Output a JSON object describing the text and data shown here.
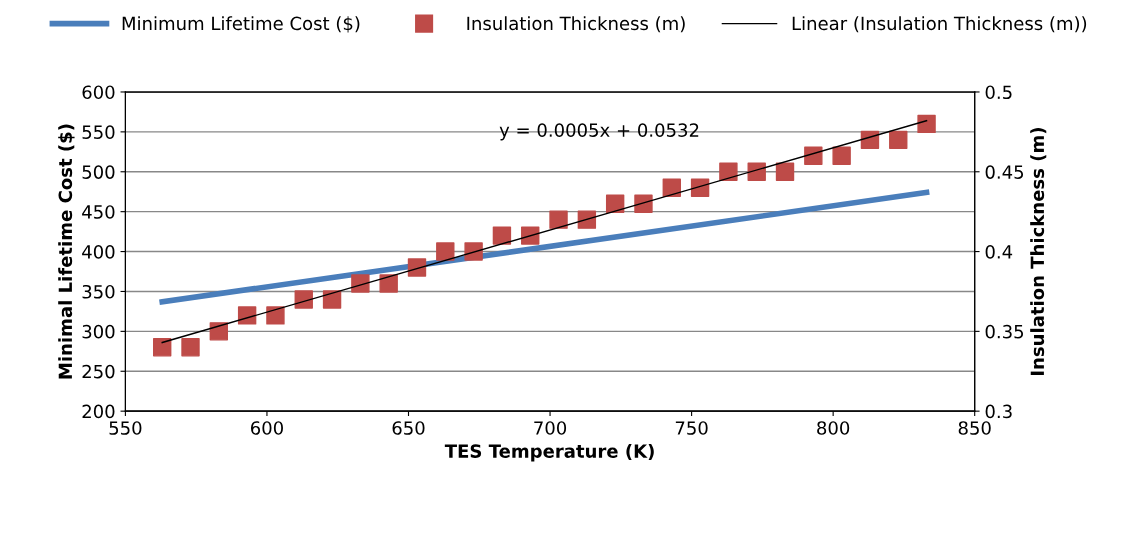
{
  "chart_data": {
    "type": "line",
    "xlabel": "TES Temperature (K)",
    "ylabel": "Minimal Lifetime Cost ($)",
    "y2label": "Insulation Thickness (m)",
    "xlim": [
      550,
      850
    ],
    "xticks": [
      550,
      600,
      650,
      700,
      750,
      800,
      850
    ],
    "ylim": [
      200,
      600
    ],
    "yticks": [
      200,
      250,
      300,
      350,
      400,
      450,
      500,
      550,
      600
    ],
    "y2lim": [
      0.3,
      0.5
    ],
    "y2ticks": [
      0.3,
      0.35,
      0.4,
      0.45,
      0.5
    ],
    "grid": "y",
    "legend": "top",
    "annotations": [
      "y = 0.0005x + 0.0532"
    ],
    "series": [
      {
        "name": "Minimum Lifetime Cost ($)",
        "color": "#4a7ebb",
        "marker": "none",
        "x": [
          563,
          833
        ],
        "values": [
          337,
          474
        ]
      },
      {
        "name": "Insulation Thickness (m)",
        "type": "scatter",
        "axis": "y2",
        "color": "#be4b48",
        "marker": "square",
        "x": [
          563,
          573,
          583,
          593,
          603,
          613,
          623,
          633,
          643,
          653,
          663,
          673,
          683,
          693,
          703,
          713,
          723,
          733,
          743,
          753,
          763,
          773,
          783,
          793,
          803,
          813,
          823,
          833
        ],
        "values": [
          0.34,
          0.34,
          0.35,
          0.36,
          0.36,
          0.37,
          0.37,
          0.38,
          0.38,
          0.39,
          0.4,
          0.4,
          0.41,
          0.41,
          0.42,
          0.42,
          0.43,
          0.43,
          0.44,
          0.44,
          0.45,
          0.45,
          0.45,
          0.46,
          0.46,
          0.47,
          0.47,
          0.48
        ]
      },
      {
        "name": "Linear (Insulation Thickness (m))",
        "type": "line",
        "axis": "y2",
        "color": "#000000",
        "marker": "none",
        "x": [
          563,
          833
        ],
        "values": [
          0.343,
          0.482
        ]
      }
    ]
  }
}
